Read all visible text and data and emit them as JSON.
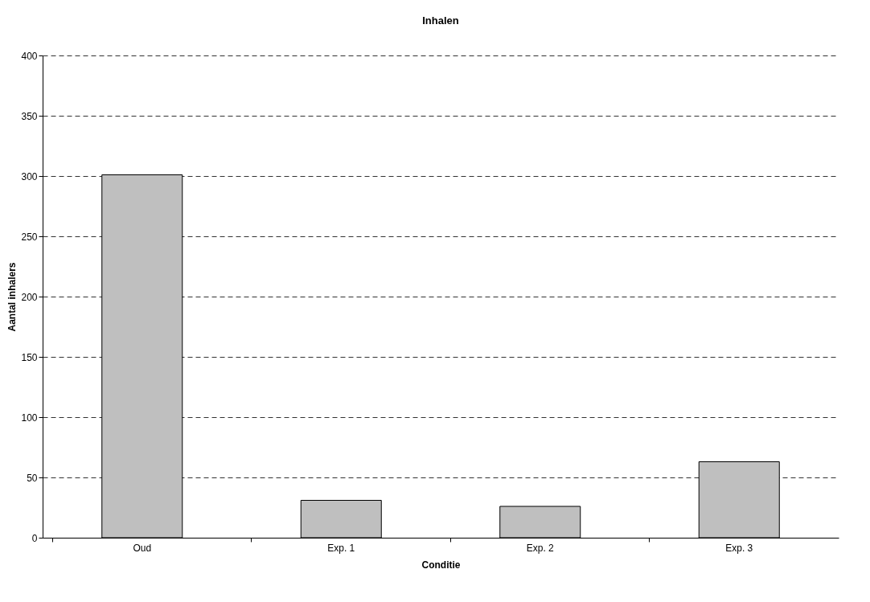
{
  "chart_data": {
    "type": "bar",
    "title": "Inhalen",
    "xlabel": "Conditie",
    "ylabel": "Aantal inhalers",
    "categories": [
      "Oud",
      "Exp. 1",
      "Exp. 2",
      "Exp. 3"
    ],
    "series": [
      {
        "color": "#bfbfbf",
        "values": [
          301,
          31,
          26,
          63
        ]
      }
    ],
    "ylim": [
      0,
      400
    ],
    "yticks": [
      0,
      50,
      100,
      150,
      200,
      250,
      300,
      350,
      400
    ],
    "grid": "y",
    "line_style": "dashed"
  }
}
